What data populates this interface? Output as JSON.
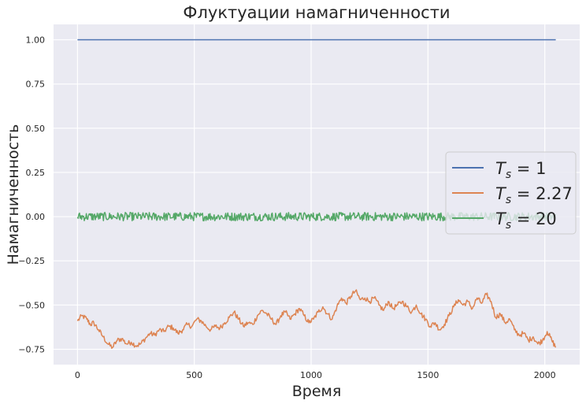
{
  "chart_data": {
    "type": "line",
    "title": "Флуктуации намагниченности",
    "xlabel": "Время",
    "ylabel": "Намагниченность",
    "xlim": [
      -102.35,
      2149.35
    ],
    "ylim": [
      -0.837,
      1.087
    ],
    "xticks": [
      0,
      500,
      1000,
      1500,
      2000
    ],
    "xtick_labels": [
      "0",
      "500",
      "1000",
      "1500",
      "2000"
    ],
    "yticks": [
      -0.75,
      -0.5,
      -0.25,
      0.0,
      0.25,
      0.5,
      0.75,
      1.0
    ],
    "ytick_labels": [
      "−0.75",
      "−0.50",
      "−0.25",
      "0.00",
      "0.25",
      "0.50",
      "0.75",
      "1.00"
    ],
    "grid": true,
    "legend_position": "center-right",
    "series": [
      {
        "name": "T_s = 1",
        "legend_base": "T",
        "legend_sub": "s",
        "legend_value": " = 1",
        "color": "#4c72b0",
        "x": [
          0,
          2047
        ],
        "y": [
          1.0,
          1.0
        ]
      },
      {
        "name": "T_s = 2.27",
        "legend_base": "T",
        "legend_sub": "s",
        "legend_value": " = 2.27",
        "color": "#dd8452",
        "x": [
          0,
          20,
          40,
          55,
          70,
          90,
          110,
          130,
          150,
          170,
          190,
          210,
          230,
          250,
          270,
          290,
          310,
          330,
          350,
          370,
          390,
          410,
          430,
          450,
          470,
          490,
          510,
          530,
          550,
          570,
          590,
          610,
          630,
          650,
          670,
          690,
          710,
          730,
          750,
          770,
          790,
          810,
          830,
          850,
          870,
          890,
          910,
          930,
          950,
          970,
          990,
          1010,
          1030,
          1050,
          1070,
          1090,
          1110,
          1130,
          1150,
          1170,
          1190,
          1210,
          1230,
          1250,
          1270,
          1290,
          1310,
          1330,
          1350,
          1370,
          1390,
          1410,
          1430,
          1450,
          1470,
          1490,
          1510,
          1530,
          1550,
          1570,
          1590,
          1610,
          1630,
          1650,
          1670,
          1690,
          1710,
          1730,
          1750,
          1770,
          1790,
          1810,
          1830,
          1850,
          1870,
          1890,
          1910,
          1930,
          1950,
          1970,
          1990,
          2010,
          2030,
          2047
        ],
        "y": [
          -0.59,
          -0.56,
          -0.58,
          -0.61,
          -0.6,
          -0.64,
          -0.68,
          -0.72,
          -0.74,
          -0.7,
          -0.69,
          -0.72,
          -0.71,
          -0.73,
          -0.72,
          -0.69,
          -0.66,
          -0.67,
          -0.64,
          -0.65,
          -0.62,
          -0.63,
          -0.66,
          -0.64,
          -0.61,
          -0.62,
          -0.58,
          -0.59,
          -0.62,
          -0.64,
          -0.62,
          -0.63,
          -0.6,
          -0.57,
          -0.54,
          -0.58,
          -0.62,
          -0.6,
          -0.61,
          -0.56,
          -0.53,
          -0.55,
          -0.58,
          -0.61,
          -0.56,
          -0.54,
          -0.58,
          -0.55,
          -0.52,
          -0.56,
          -0.6,
          -0.58,
          -0.54,
          -0.51,
          -0.55,
          -0.58,
          -0.51,
          -0.46,
          -0.49,
          -0.45,
          -0.42,
          -0.47,
          -0.46,
          -0.48,
          -0.46,
          -0.5,
          -0.53,
          -0.48,
          -0.52,
          -0.5,
          -0.48,
          -0.51,
          -0.54,
          -0.5,
          -0.55,
          -0.58,
          -0.62,
          -0.6,
          -0.64,
          -0.61,
          -0.56,
          -0.51,
          -0.47,
          -0.5,
          -0.48,
          -0.52,
          -0.46,
          -0.49,
          -0.44,
          -0.48,
          -0.57,
          -0.55,
          -0.6,
          -0.58,
          -0.64,
          -0.67,
          -0.66,
          -0.7,
          -0.68,
          -0.72,
          -0.7,
          -0.65,
          -0.7,
          -0.74
        ]
      },
      {
        "name": "T_s = 20",
        "legend_base": "T",
        "legend_sub": "s",
        "legend_value": " = 20",
        "color": "#55a868",
        "x": [
          0,
          2047
        ],
        "y": [
          0.0,
          0.0
        ],
        "noise_amplitude": 0.03
      }
    ]
  }
}
